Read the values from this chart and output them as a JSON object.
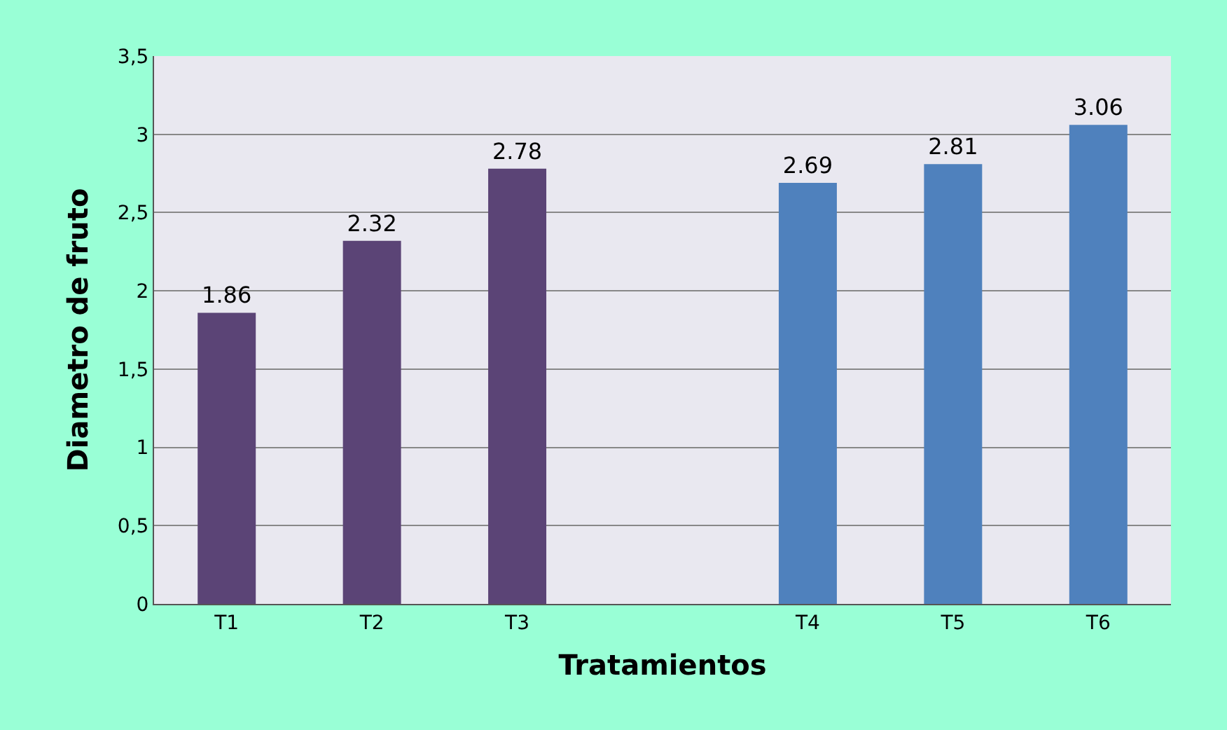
{
  "chart_data": {
    "type": "bar",
    "xlabel": "Tratamientos",
    "ylabel": "Diametro de fruto",
    "categories": [
      "T1",
      "T2",
      "T3",
      null,
      "T4",
      "T5",
      "T6"
    ],
    "values": [
      1.86,
      2.32,
      2.78,
      null,
      2.69,
      2.81,
      3.06
    ],
    "colors": [
      "#5b4476",
      "#5b4476",
      "#5b4476",
      null,
      "#4f81bd",
      "#4f81bd",
      "#4f81bd"
    ],
    "ylim": [
      0,
      3.5
    ],
    "yticks": [
      0,
      {
        "value": 0.5,
        "label": "0,5"
      },
      1,
      {
        "value": 1.5,
        "label": "1,5"
      },
      2,
      {
        "value": 2.5,
        "label": "2,5"
      },
      3,
      {
        "value": 3.5,
        "label": "3,5"
      }
    ],
    "grid": "y",
    "data_labels": true
  }
}
